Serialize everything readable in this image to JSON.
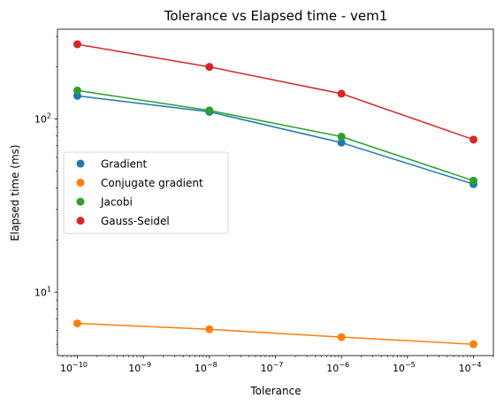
{
  "chart_data": {
    "type": "line",
    "title": "Tolerance vs Elapsed time - vem1",
    "xlabel": "Tolerance",
    "ylabel": "Elapsed time (ms)",
    "xscale": "log",
    "yscale": "log",
    "xlim": [
      5e-11,
      0.0002
    ],
    "ylim": [
      4.3,
      330
    ],
    "x": [
      1e-10,
      1e-08,
      1e-06,
      0.0001
    ],
    "x_tick_labels": [
      {
        "value": 1e-10,
        "base": "10",
        "exp": "−10"
      },
      {
        "value": 1e-09,
        "base": "10",
        "exp": "−9"
      },
      {
        "value": 1e-08,
        "base": "10",
        "exp": "−8"
      },
      {
        "value": 1e-07,
        "base": "10",
        "exp": "−7"
      },
      {
        "value": 1e-06,
        "base": "10",
        "exp": "−6"
      },
      {
        "value": 1e-05,
        "base": "10",
        "exp": "−5"
      },
      {
        "value": 0.0001,
        "base": "10",
        "exp": "−4"
      }
    ],
    "y_tick_labels": [
      {
        "value": 10,
        "base": "10",
        "exp": "1"
      },
      {
        "value": 100,
        "base": "10",
        "exp": "2"
      }
    ],
    "grid": false,
    "legend_position": "center-left",
    "series": [
      {
        "name": "Gradient",
        "color": "#1f77b4",
        "values": [
          136,
          110,
          73,
          42
        ]
      },
      {
        "name": "Conjugate gradient",
        "color": "#ff7f0e",
        "values": [
          6.6,
          6.1,
          5.5,
          5.0
        ]
      },
      {
        "name": "Jacobi",
        "color": "#2ca02c",
        "values": [
          146,
          112,
          79,
          44
        ]
      },
      {
        "name": "Gauss-Seidel",
        "color": "#d62728",
        "values": [
          270,
          200,
          140,
          76
        ]
      }
    ]
  }
}
